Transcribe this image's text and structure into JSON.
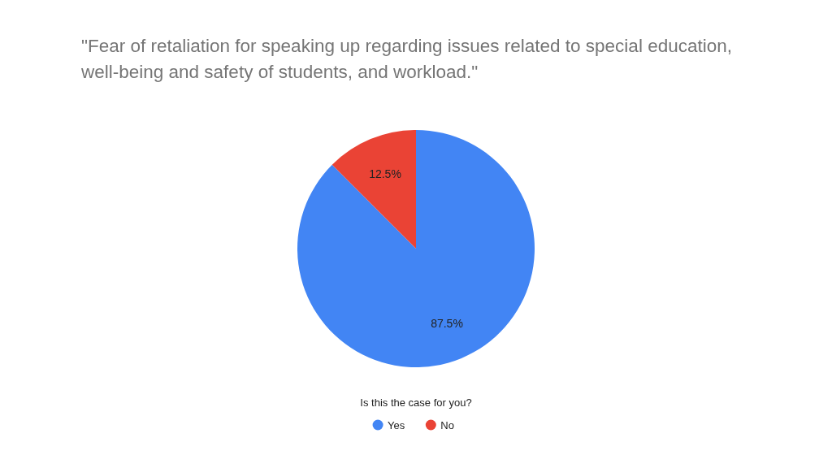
{
  "chart_data": {
    "type": "pie",
    "title": "\"Fear of retaliation for speaking up regarding issues related to special education, well-being and safety of students, and workload.\"",
    "legend_title": "Is this the case for you?",
    "categories": [
      "Yes",
      "No"
    ],
    "values": [
      87.5,
      12.5
    ],
    "colors": [
      "#4285f4",
      "#ea4335"
    ],
    "value_labels": [
      "87.5%",
      "12.5%"
    ],
    "legend": "bottom"
  }
}
